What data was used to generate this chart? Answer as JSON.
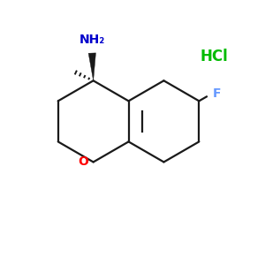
{
  "background_color": "#ffffff",
  "bond_color": "#1a1a1a",
  "o_color": "#ff0000",
  "n_color": "#0000cc",
  "f_color": "#6699ff",
  "hcl_color": "#00bb00",
  "nh2_label": "NH₂",
  "o_label": "O",
  "f_label": "F",
  "hcl_label": "HCl",
  "figsize": [
    3.0,
    3.0
  ],
  "dpi": 100
}
